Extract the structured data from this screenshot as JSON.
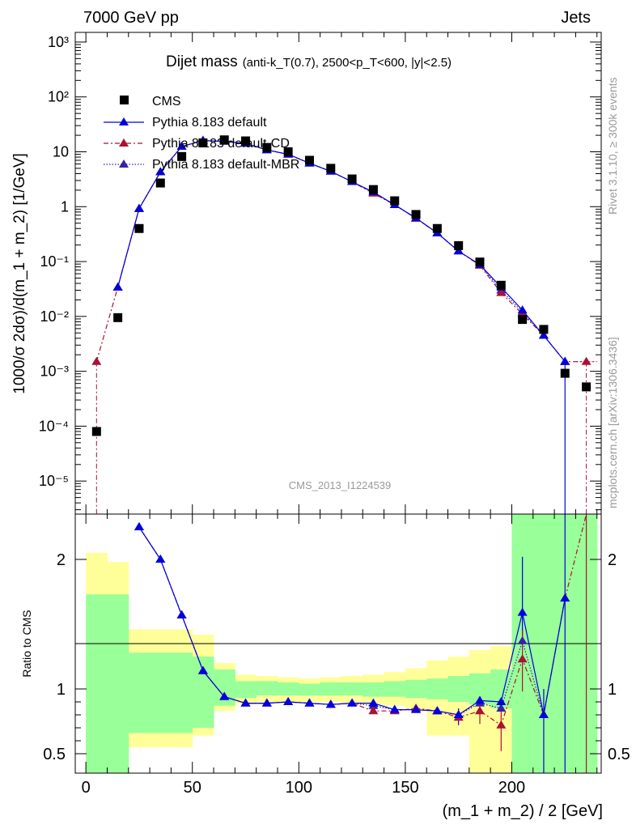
{
  "header": {
    "energy_label": "7000 GeV pp",
    "process_label": "Jets",
    "rivet_label": "Rivet 3.1.10, ≥ 300k events",
    "mcplots_label": "mcplots.cern.ch [arXiv:1306.3436]",
    "analysis_id": "CMS_2013_I1224539"
  },
  "legend": {
    "cms": "CMS",
    "default": "Pythia 8.183 default",
    "cd": "Pythia 8.183 default-CD",
    "mbr": "Pythia 8.183 default-MBR"
  },
  "colors": {
    "cms": "#000000",
    "default": "#0000dd",
    "cd": "#aa1133",
    "mbr": "#3322aa",
    "band_green": "#99ff99",
    "band_yellow": "#ffff99"
  },
  "chart_data": [
    {
      "type": "scatter",
      "title_main": "Dijet mass",
      "title_sub": "(anti-k_T(0.7), 2500<p_T<600, |y|<2.5)",
      "ylabel": "1000/σ 2dσ)/d(m_1 + m_2) [1/GeV]",
      "yscale": "log",
      "ylim": [
        2.5e-06,
        1500
      ],
      "xlim": [
        -5,
        242
      ],
      "ytick_labels": [
        "10⁻⁵",
        "10⁻⁴",
        "10⁻³",
        "10⁻²",
        "10⁻¹",
        "1",
        "10",
        "10²",
        "10³"
      ],
      "x": [
        5,
        15,
        25,
        35,
        45,
        55,
        65,
        75,
        85,
        95,
        105,
        115,
        125,
        135,
        145,
        155,
        165,
        175,
        185,
        195,
        205,
        215,
        225,
        235
      ],
      "series": [
        {
          "name": "CMS",
          "values": [
            8e-05,
            0.0095,
            0.4,
            2.7,
            8.2,
            14.5,
            16.5,
            15.8,
            12.0,
            10.0,
            7.0,
            5.0,
            3.2,
            2.05,
            1.28,
            0.72,
            0.4,
            0.195,
            0.098,
            0.037,
            0.0088,
            0.0058,
            0.00092,
            0.00052
          ]
        },
        {
          "name": "Pythia 8.183 default",
          "values": [
            null,
            0.034,
            0.92,
            4.3,
            12.5,
            16.0,
            15.5,
            14.2,
            10.8,
            9.0,
            6.2,
            4.4,
            2.85,
            1.85,
            1.08,
            0.62,
            0.33,
            0.155,
            0.088,
            0.034,
            0.013,
            0.0045,
            0.0015,
            null
          ]
        },
        {
          "name": "Pythia 8.183 default-CD",
          "values": [
            0.0015,
            0.034,
            0.92,
            4.3,
            12.5,
            16.0,
            15.5,
            14.2,
            10.8,
            9.0,
            6.2,
            4.4,
            2.85,
            1.75,
            1.08,
            0.61,
            0.33,
            0.155,
            0.085,
            0.027,
            0.011,
            0.0045,
            0.0015,
            0.0015
          ]
        },
        {
          "name": "Pythia 8.183 default-MBR",
          "values": [
            null,
            0.034,
            0.92,
            4.3,
            12.5,
            16.0,
            15.5,
            14.2,
            10.8,
            9.0,
            6.2,
            4.4,
            2.85,
            1.8,
            1.08,
            0.62,
            0.33,
            0.155,
            0.087,
            0.03,
            0.012,
            0.0045,
            0.0015,
            null
          ]
        }
      ]
    },
    {
      "type": "line",
      "ylabel": "Ratio to CMS",
      "xlabel": "(m_1 + m_2) / 2 [GeV]",
      "ylim": [
        0.35,
        2.35
      ],
      "xlim": [
        -5,
        242
      ],
      "xticks": [
        0,
        50,
        100,
        150,
        200
      ],
      "yticks": [
        0.5,
        1,
        2
      ],
      "band_edges": [
        0,
        10,
        20,
        30,
        40,
        50,
        60,
        70,
        80,
        90,
        100,
        110,
        120,
        130,
        140,
        150,
        160,
        170,
        180,
        190,
        200,
        210,
        220,
        230,
        240
      ],
      "green_band": [
        [
          0.35,
          1.73
        ],
        [
          0.35,
          1.73
        ],
        [
          0.66,
          1.28
        ],
        [
          0.66,
          1.28
        ],
        [
          0.66,
          1.28
        ],
        [
          0.7,
          1.25
        ],
        [
          0.87,
          1.15
        ],
        [
          0.93,
          1.06
        ],
        [
          0.95,
          1.06
        ],
        [
          0.95,
          1.05
        ],
        [
          0.95,
          1.04
        ],
        [
          0.95,
          1.05
        ],
        [
          0.95,
          1.05
        ],
        [
          0.94,
          1.05
        ],
        [
          0.94,
          1.06
        ],
        [
          0.93,
          1.07
        ],
        [
          0.92,
          1.08
        ],
        [
          0.9,
          1.1
        ],
        [
          0.88,
          1.12
        ],
        [
          0.85,
          1.15
        ],
        [
          0.35,
          2.35
        ],
        [
          0.35,
          2.35
        ],
        [
          0.35,
          2.35
        ],
        [
          0.35,
          2.35
        ]
      ],
      "yellow_band": [
        [
          0.43,
          2.05
        ],
        [
          0.38,
          1.98
        ],
        [
          0.55,
          1.46
        ],
        [
          0.55,
          1.46
        ],
        [
          0.55,
          1.46
        ],
        [
          0.64,
          1.42
        ],
        [
          0.83,
          1.2
        ],
        [
          0.88,
          1.11
        ],
        [
          0.9,
          1.1
        ],
        [
          0.9,
          1.09
        ],
        [
          0.9,
          1.08
        ],
        [
          0.9,
          1.09
        ],
        [
          0.89,
          1.1
        ],
        [
          0.88,
          1.11
        ],
        [
          0.87,
          1.13
        ],
        [
          0.84,
          1.16
        ],
        [
          0.64,
          1.22
        ],
        [
          0.64,
          1.25
        ],
        [
          0.35,
          1.3
        ],
        [
          0.35,
          1.33
        ],
        [
          0.35,
          1.78
        ],
        [
          0.35,
          2.0
        ],
        [
          0.35,
          2.35
        ],
        [
          0.35,
          2.35
        ]
      ],
      "series": [
        {
          "name": "Pythia 8.183 default",
          "values": [
            null,
            null,
            2.25,
            2.0,
            1.57,
            1.14,
            0.94,
            0.89,
            0.89,
            0.9,
            0.89,
            0.88,
            0.89,
            0.89,
            0.84,
            0.84,
            0.83,
            0.8,
            0.91,
            0.9,
            1.59,
            0.8,
            1.7,
            null
          ]
        },
        {
          "name": "Pythia 8.183 default-CD",
          "values": [
            null,
            null,
            2.25,
            2.0,
            1.57,
            1.14,
            0.94,
            0.89,
            0.89,
            0.9,
            0.89,
            0.88,
            0.89,
            0.83,
            0.83,
            0.85,
            0.83,
            0.78,
            0.83,
            0.72,
            1.23,
            0.8,
            1.7,
            2.35
          ]
        },
        {
          "name": "Pythia 8.183 default-MBR",
          "values": [
            null,
            null,
            2.25,
            2.0,
            1.57,
            1.14,
            0.94,
            0.89,
            0.89,
            0.9,
            0.89,
            0.88,
            0.89,
            0.87,
            0.84,
            0.84,
            0.83,
            0.8,
            0.89,
            0.85,
            1.37,
            0.8,
            1.7,
            null
          ]
        }
      ]
    }
  ]
}
